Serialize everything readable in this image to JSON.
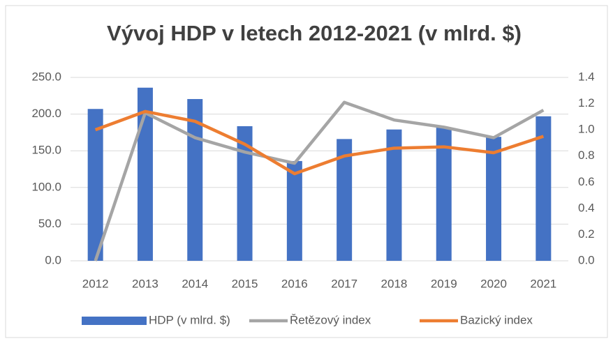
{
  "chart_data": {
    "type": "bar-line",
    "title": "Vývoj HDP v letech 2012-2021  (v mlrd. $)",
    "categories": [
      "2012",
      "2013",
      "2014",
      "2015",
      "2016",
      "2017",
      "2018",
      "2019",
      "2020",
      "2021"
    ],
    "series": [
      {
        "name": "HDP (v mlrd. $)",
        "type": "bar",
        "color": "#4472c4",
        "values": [
          207,
          236,
          220.5,
          183.5,
          136,
          166,
          179,
          181.5,
          169,
          197
        ]
      },
      {
        "name": "Řetězový index",
        "type": "line",
        "axis": "y2",
        "color": "#a5a5a5",
        "values": [
          0,
          1.13,
          0.94,
          0.83,
          0.745,
          1.21,
          1.075,
          1.02,
          0.94,
          1.15
        ]
      },
      {
        "name": "Bazický index",
        "type": "line",
        "axis": "y2",
        "color": "#ed7d31",
        "values": [
          1.0,
          1.14,
          1.065,
          0.89,
          0.665,
          0.8,
          0.86,
          0.87,
          0.825,
          0.95
        ]
      }
    ],
    "ylim": [
      0,
      250
    ],
    "yticks": [
      {
        "value": 0,
        "label": "0.0"
      },
      {
        "value": 50,
        "label": "50.0"
      },
      {
        "value": 100,
        "label": "100.0"
      },
      {
        "value": 150,
        "label": "150.0"
      },
      {
        "value": 200,
        "label": "200.0"
      },
      {
        "value": 250,
        "label": "250.0"
      }
    ],
    "y2lim": [
      0,
      1.4
    ],
    "y2ticks": [
      {
        "value": 0,
        "label": "0.0"
      },
      0.2,
      0.4,
      0.6,
      0.8,
      {
        "value": 1,
        "label": "1.0"
      },
      1.2,
      1.4
    ],
    "grid": true,
    "legend": "bottom"
  }
}
